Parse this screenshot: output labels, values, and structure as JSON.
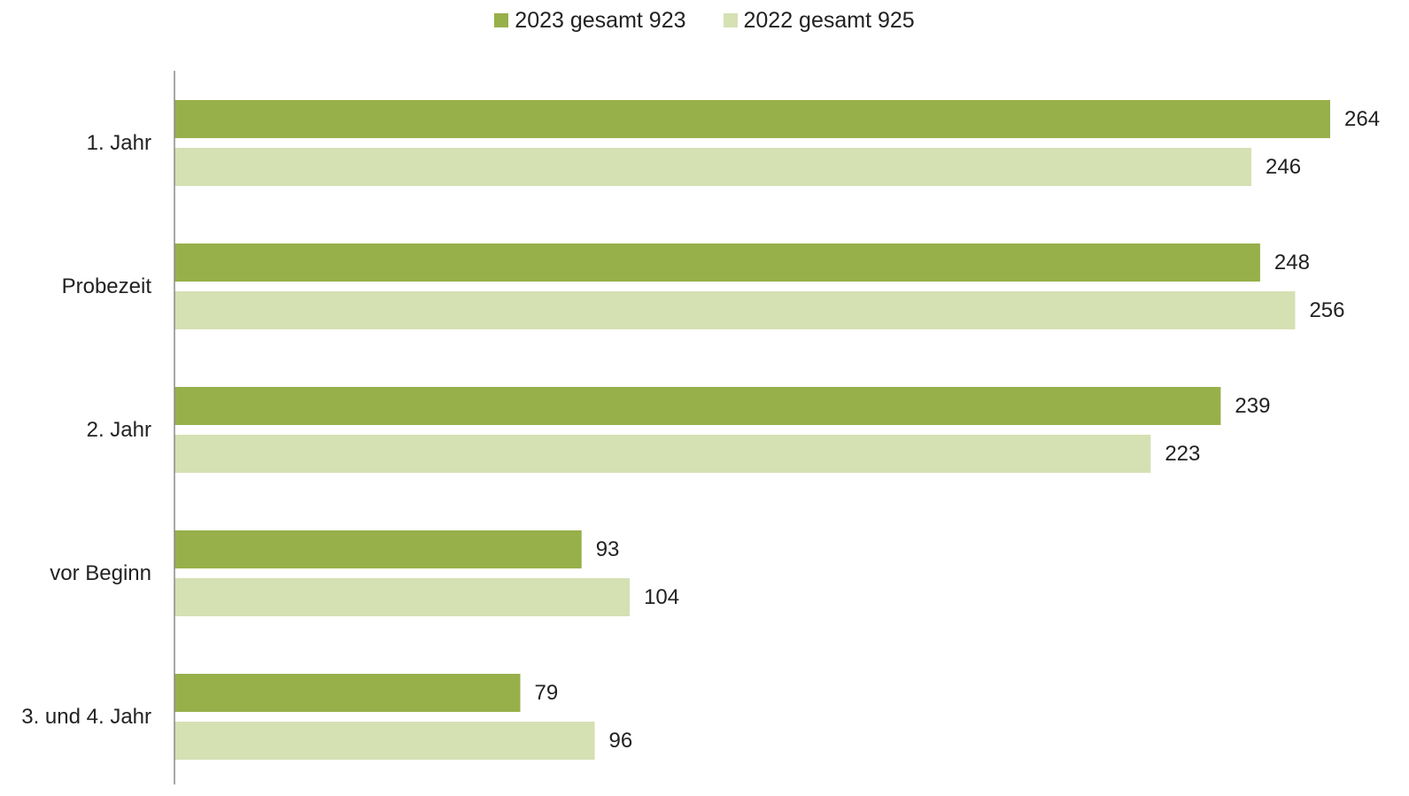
{
  "chart_data": {
    "type": "bar",
    "orientation": "horizontal",
    "categories": [
      "1. Jahr",
      "Probezeit",
      "2. Jahr",
      "vor Beginn",
      "3. und 4. Jahr"
    ],
    "series": [
      {
        "name": "2023 gesamt 923",
        "values": [
          264,
          248,
          239,
          93,
          79
        ],
        "color": "#97b04a"
      },
      {
        "name": "2022 gesamt 925",
        "values": [
          246,
          256,
          223,
          104,
          96
        ],
        "color": "#d5e0b3"
      }
    ],
    "xlim": [
      0,
      264
    ],
    "grid": false,
    "legend_position": "top-center",
    "data_labels": true
  }
}
